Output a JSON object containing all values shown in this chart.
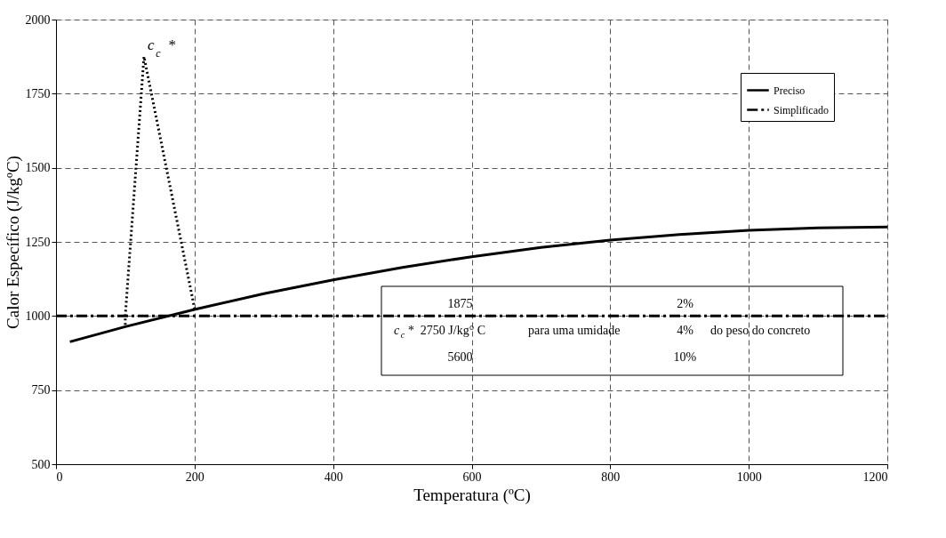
{
  "chart_data": {
    "type": "line",
    "xlabel": "Temperatura (ºC)",
    "ylabel": "Calor Específico (J/kgºC)",
    "xlim": [
      0,
      1200
    ],
    "xticks": [
      0,
      200,
      400,
      600,
      800,
      1000,
      1200
    ],
    "ylim": [
      500,
      2000
    ],
    "yticks": [
      500,
      750,
      1000,
      1250,
      1500,
      1750,
      2000
    ],
    "grid": true,
    "legend": "top right",
    "series": [
      {
        "name": "Preciso",
        "color": "#000000",
        "line_style": "solid",
        "x": [
          20,
          100,
          200,
          300,
          400,
          500,
          600,
          700,
          800,
          900,
          1000,
          1100,
          1200
        ],
        "values": [
          913,
          964,
          1022,
          1075,
          1122,
          1164,
          1200,
          1231,
          1256,
          1275,
          1289,
          1297,
          1300
        ]
      },
      {
        "name": "Simplificado",
        "color": "#000000",
        "line_style": "dashdot",
        "x": [
          0,
          1200
        ],
        "values": [
          1000,
          1000
        ]
      },
      {
        "color": "#000000",
        "line_style": "dotted",
        "x": [
          100,
          100,
          127,
          200
        ],
        "values": [
          970,
          1000,
          1875,
          1025
        ]
      }
    ],
    "annotations": [
      {
        "text": "c$_{c}$ *",
        "x": 127,
        "y": 1875
      },
      "c$_{c}$*",
      "1875",
      "2750 J/kg° C",
      "5600",
      "para uma umidade",
      "2%",
      "4%",
      "10%",
      "do peso do concreto"
    ]
  }
}
